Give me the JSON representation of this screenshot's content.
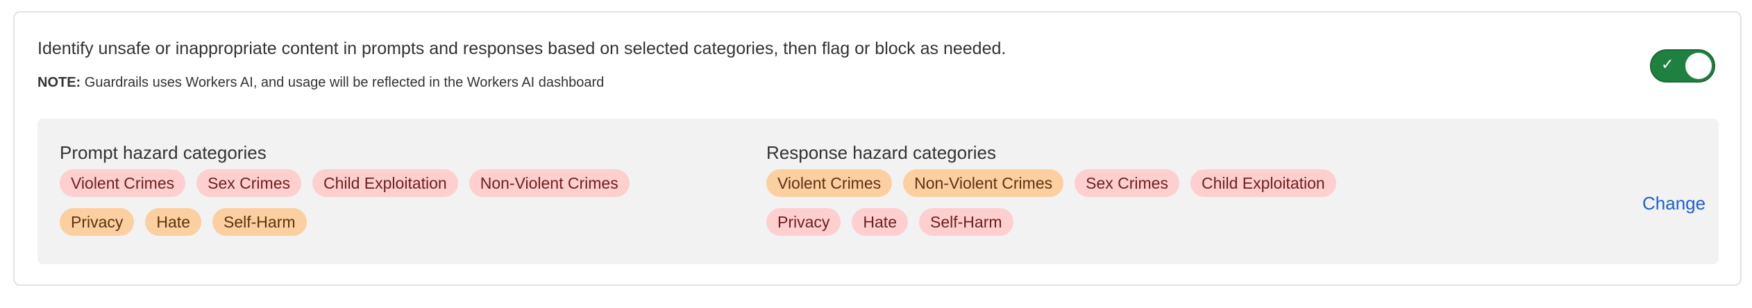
{
  "description": "Identify unsafe or inappropriate content in prompts and responses based on selected categories, then flag or block as needed.",
  "note": {
    "label": "NOTE:",
    "text": " Guardrails uses Workers AI, and usage will be reflected in the Workers AI dashboard"
  },
  "toggle": {
    "enabled": true,
    "color": "#20803f",
    "icon": "check-icon"
  },
  "prompt": {
    "title": "Prompt hazard categories",
    "rows": [
      [
        {
          "label": "Violent Crimes",
          "tone": "pink"
        },
        {
          "label": "Sex Crimes",
          "tone": "pink"
        },
        {
          "label": "Child Exploitation",
          "tone": "pink"
        },
        {
          "label": "Non-Violent Crimes",
          "tone": "pink"
        }
      ],
      [
        {
          "label": "Privacy",
          "tone": "orange"
        },
        {
          "label": "Hate",
          "tone": "orange"
        },
        {
          "label": "Self-Harm",
          "tone": "orange"
        }
      ]
    ]
  },
  "response": {
    "title": "Response hazard categories",
    "rows": [
      [
        {
          "label": "Violent Crimes",
          "tone": "orange"
        },
        {
          "label": "Non-Violent Crimes",
          "tone": "orange"
        },
        {
          "label": "Sex Crimes",
          "tone": "pink"
        },
        {
          "label": "Child Exploitation",
          "tone": "pink"
        }
      ],
      [
        {
          "label": "Privacy",
          "tone": "pink"
        },
        {
          "label": "Hate",
          "tone": "pink"
        },
        {
          "label": "Self-Harm",
          "tone": "pink"
        }
      ]
    ]
  },
  "change_label": "Change",
  "colors": {
    "pink_bg": "#fdcfcf",
    "orange_bg": "#fbcf9f",
    "link": "#1f5fcc"
  }
}
